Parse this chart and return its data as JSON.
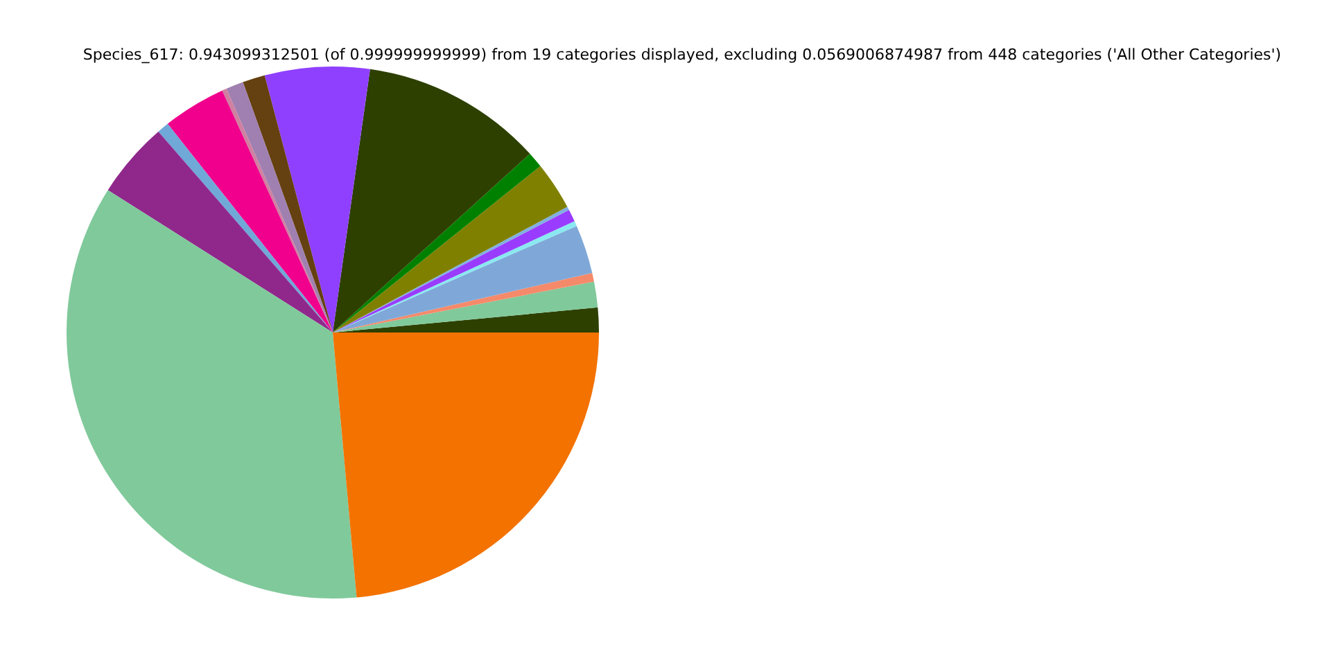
{
  "chart_data": {
    "type": "pie",
    "title": "Species_617: 0.943099312501 (of 0.999999999999) from 19 categories displayed, excluding 0.0569006874987 from 448 categories ('All Other Categories')",
    "categories": [
      null,
      null,
      null,
      null,
      null,
      null,
      null,
      null,
      null,
      null,
      null,
      null,
      null,
      null,
      null,
      null,
      null,
      null,
      null
    ],
    "values": [
      1.5,
      1.56,
      0.53,
      2.97,
      0.31,
      0.75,
      0.22,
      2.92,
      0.97,
      11.03,
      6.36,
      1.36,
      1.06,
      0.28,
      3.83,
      0.72,
      4.64,
      35.42,
      23.57
    ],
    "colors": [
      "#2d4000",
      "#80c99b",
      "#f58a6a",
      "#7fa8d8",
      "#8ae8f0",
      "#9a3cff",
      "#80b0e0",
      "#808000",
      "#008000",
      "#2d4000",
      "#8f40ff",
      "#654010",
      "#a080b0",
      "#d080a0",
      "#f0008c",
      "#70a8d8",
      "#90288c",
      "#80c99b",
      "#f37200"
    ]
  }
}
